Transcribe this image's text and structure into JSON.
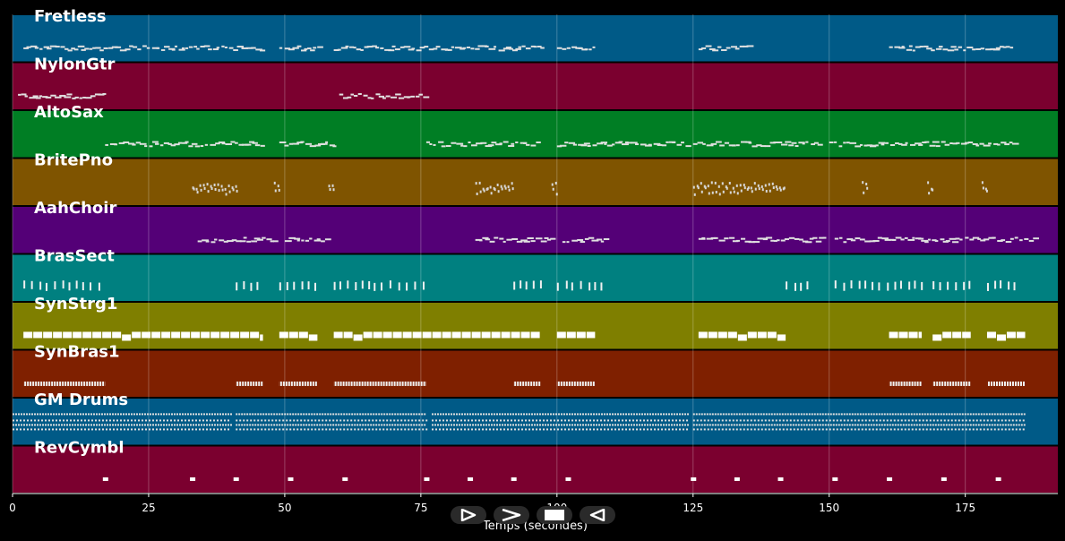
{
  "chart_data": {
    "type": "piano-roll",
    "xlabel": "Temps (secondes)",
    "xlim": [
      0,
      192
    ],
    "xticks": [
      0,
      25,
      50,
      75,
      100,
      125,
      150,
      175
    ],
    "tracks": [
      {
        "name": "Fretless",
        "color": "#005a87",
        "segments": [
          [
            2,
            46
          ],
          [
            49,
            56
          ],
          [
            59,
            97
          ],
          [
            100,
            107
          ],
          [
            126,
            135
          ],
          [
            161,
            184
          ]
        ],
        "style": "notes"
      },
      {
        "name": "NylonGtr",
        "color": "#7b002f",
        "segments": [
          [
            1,
            17
          ],
          [
            60,
            76
          ]
        ],
        "style": "notes"
      },
      {
        "name": "AltoSax",
        "color": "#007e24",
        "segments": [
          [
            17,
            46
          ],
          [
            49,
            59
          ],
          [
            76,
            97
          ],
          [
            100,
            124
          ],
          [
            125,
            148
          ],
          [
            150,
            184
          ]
        ],
        "style": "notes"
      },
      {
        "name": "BritePno",
        "color": "#7f5400",
        "segments": [
          [
            33,
            41
          ],
          [
            48,
            49
          ],
          [
            58,
            59
          ],
          [
            85,
            92
          ],
          [
            99,
            100
          ],
          [
            125,
            142
          ],
          [
            156,
            157
          ],
          [
            168,
            169
          ],
          [
            178,
            179
          ]
        ],
        "style": "chords"
      },
      {
        "name": "AahChoir",
        "color": "#540077",
        "segments": [
          [
            34,
            48
          ],
          [
            50,
            58
          ],
          [
            85,
            99
          ],
          [
            101,
            109
          ],
          [
            126,
            149
          ],
          [
            151,
            188
          ]
        ],
        "style": "notes"
      },
      {
        "name": "BrasSect",
        "color": "#008080",
        "segments": [
          [
            2,
            17
          ],
          [
            41,
            46
          ],
          [
            49,
            56
          ],
          [
            59,
            76
          ],
          [
            92,
            97
          ],
          [
            100,
            107
          ],
          [
            108,
            109
          ],
          [
            142,
            146
          ],
          [
            151,
            158
          ],
          [
            159,
            167
          ],
          [
            169,
            176
          ],
          [
            179,
            185
          ]
        ],
        "style": "hits"
      },
      {
        "name": "SynStrg1",
        "color": "#7f7f00",
        "segments": [
          [
            2,
            46
          ],
          [
            49,
            56
          ],
          [
            59,
            97
          ],
          [
            100,
            107
          ],
          [
            126,
            142
          ],
          [
            161,
            167
          ],
          [
            169,
            176
          ],
          [
            179,
            186
          ]
        ],
        "style": "thick"
      },
      {
        "name": "SynBras1",
        "color": "#7f2000",
        "segments": [
          [
            2,
            17
          ],
          [
            41,
            46
          ],
          [
            49,
            56
          ],
          [
            59,
            76
          ],
          [
            92,
            97
          ],
          [
            100,
            107
          ],
          [
            161,
            167
          ],
          [
            169,
            176
          ],
          [
            179,
            186
          ]
        ],
        "style": "dense"
      },
      {
        "name": "GM Drums",
        "color": "#005a87",
        "segments": [
          [
            0,
            40
          ],
          [
            41,
            76
          ],
          [
            77,
            124
          ],
          [
            125,
            186
          ]
        ],
        "style": "drums"
      },
      {
        "name": "RevCymbl",
        "color": "#7b002f",
        "points": [
          17,
          33,
          41,
          51,
          61,
          76,
          84,
          92,
          102,
          125,
          133,
          141,
          151,
          161,
          171,
          181
        ],
        "style": "points"
      }
    ],
    "controls": [
      {
        "name": "play-button",
        "icon": "play-outline-icon"
      },
      {
        "name": "forward-button",
        "icon": "fast-forward-icon"
      },
      {
        "name": "stop-button",
        "icon": "stop-icon"
      },
      {
        "name": "rewind-button",
        "icon": "rewind-icon"
      }
    ]
  }
}
